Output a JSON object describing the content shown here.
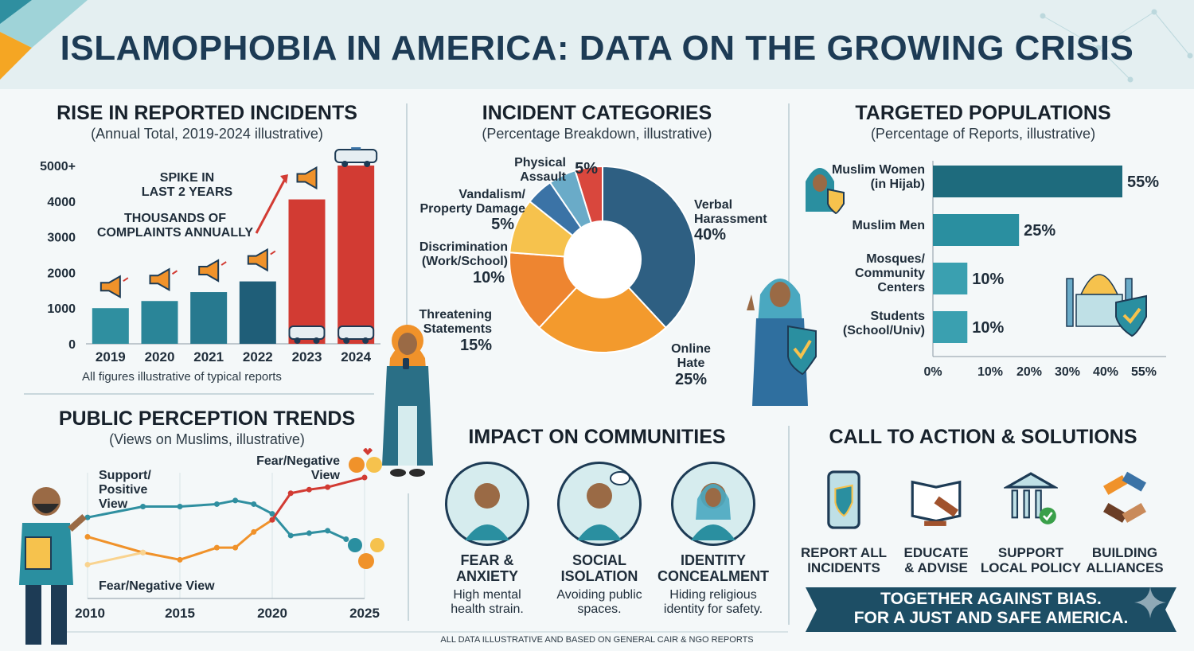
{
  "title": "ISLAMOPHOBIA IN AMERICA: DATA ON THE GROWING CRISIS",
  "colors": {
    "navy": "#1d3b55",
    "teal": "#2f8fa0",
    "red": "#d23b33",
    "orange": "#f0922a",
    "yellow": "#f6c24d",
    "blue": "#3b73a6",
    "lightblue": "#6aabc8"
  },
  "incidents": {
    "title": "RISE IN REPORTED INCIDENTS",
    "subtitle": "(Annual Total, 2019-2024 illustrative)",
    "annotation_spike": "SPIKE IN\nLAST 2 YEARS",
    "annotation_thousands": "THOUSANDS OF\nCOMPLAINTS ANNUALLY",
    "note": "All figures illustrative of typical reports"
  },
  "categories": {
    "title": "INCIDENT CATEGORIES",
    "subtitle": "(Percentage Breakdown, illustrative)"
  },
  "populations": {
    "title": "TARGETED POPULATIONS",
    "subtitle": "(Percentage of Reports, illustrative)"
  },
  "perception": {
    "title": "PUBLIC PERCEPTION TRENDS",
    "subtitle": "(Views on Muslims, illustrative)",
    "label_support": "Support/\nPositive\nView",
    "label_fear_top": "Fear/Negative\nView",
    "label_fear_bottom": "Fear/Negative View"
  },
  "impact": {
    "title": "IMPACT ON COMMUNITIES",
    "items": [
      {
        "title": "FEAR &\nANXIETY",
        "desc": "High mental\nhealth strain.",
        "icon": "anxious-person-icon"
      },
      {
        "title": "SOCIAL\nISOLATION",
        "desc": "Avoiding public\nspaces.",
        "icon": "isolated-person-icon"
      },
      {
        "title": "IDENTITY\nCONCEALMENT",
        "desc": "Hiding religious\nidentity for safety.",
        "icon": "hijab-woman-icon"
      }
    ]
  },
  "action": {
    "title": "CALL TO ACTION & SOLUTIONS",
    "items": [
      {
        "label": "REPORT ALL\nINCIDENTS",
        "icon": "phone-shield-icon"
      },
      {
        "label": "EDUCATE\n& ADVISE",
        "icon": "book-gavel-icon"
      },
      {
        "label": "SUPPORT\nLOCAL POLICY",
        "icon": "government-building-icon"
      },
      {
        "label": "BUILDING\nALLIANCES",
        "icon": "joined-hands-icon"
      }
    ],
    "banner": "TOGETHER AGAINST BIAS.\nFOR A JUST AND SAFE AMERICA."
  },
  "footer": "ALL DATA ILLUSTRATIVE AND BASED ON GENERAL CAIR & NGO REPORTS",
  "chart_data": [
    {
      "type": "bar",
      "title": "RISE IN REPORTED INCIDENTS",
      "categories": [
        "2019",
        "2020",
        "2021",
        "2022",
        "2023",
        "2024"
      ],
      "values": [
        1000,
        1200,
        1450,
        1750,
        4050,
        5000
      ],
      "y_ticks": [
        "0",
        "1000",
        "2000",
        "3000",
        "4000",
        "5000+"
      ],
      "ylim": [
        0,
        5000
      ],
      "bar_colors": [
        "#2f8fa0",
        "#2a8598",
        "#27798f",
        "#1f5e78",
        "#d23b33",
        "#d23b33"
      ]
    },
    {
      "type": "pie",
      "title": "INCIDENT CATEGORIES",
      "slices": [
        {
          "label": "Verbal\nHarassment",
          "value": 40,
          "pct": "40%",
          "color": "#2e5f82"
        },
        {
          "label": "Online\nHate",
          "value": 25,
          "pct": "25%",
          "color": "#f39a2d"
        },
        {
          "label": "Threatening\nStatements",
          "value": 15,
          "pct": "15%",
          "color": "#ee8530"
        },
        {
          "label": "Discrimination\n(Work/School)",
          "value": 10,
          "pct": "10%",
          "color": "#f6c24d"
        },
        {
          "label": "Vandalism/\nProperty Damage",
          "value": 5,
          "pct": "5%",
          "color": "#3b73a6"
        },
        {
          "label": "Physical\nAssault",
          "value": 5,
          "pct": "5%",
          "color": "#6aabc8"
        },
        {
          "label": "",
          "value": 5,
          "pct": "",
          "color": "#d9473d"
        }
      ]
    },
    {
      "type": "bar",
      "orientation": "horizontal",
      "title": "TARGETED POPULATIONS",
      "categories": [
        "Muslim Women\n(in Hijab)",
        "Muslim Men",
        "Mosques/\nCommunity\nCenters",
        "Students\n(School/Univ)"
      ],
      "values": [
        55,
        25,
        10,
        10
      ],
      "value_labels": [
        "55%",
        "25%",
        "10%",
        "10%"
      ],
      "x_ticks": [
        "0%",
        "10%",
        "20%",
        "30%",
        "40%",
        "55%"
      ],
      "x_tick_values": [
        0,
        10,
        20,
        30,
        40,
        55
      ],
      "xlim": [
        0,
        55
      ],
      "bar_colors": [
        "#1e6b7d",
        "#2a8fa0",
        "#3aa0b0",
        "#3aa0b0"
      ]
    },
    {
      "type": "line",
      "title": "PUBLIC PERCEPTION TRENDS",
      "x_ticks": [
        "2010",
        "2015",
        "2020",
        "2025"
      ],
      "x_tick_values": [
        2010,
        2015,
        2020,
        2025
      ],
      "xlim": [
        2010,
        2025
      ],
      "ylim": [
        0,
        100
      ],
      "series": [
        {
          "name": "Support/Positive View",
          "color": "#2f8fa0",
          "x": [
            2010,
            2013,
            2015,
            2017,
            2018,
            2019,
            2020,
            2021,
            2022,
            2023,
            2024
          ],
          "y": [
            67,
            76,
            76,
            78,
            81,
            78,
            70,
            52,
            54,
            56,
            49
          ]
        },
        {
          "name": "Fear/Negative View",
          "color": "#f0922a",
          "x": [
            2010,
            2013,
            2015,
            2017,
            2018,
            2019,
            2020
          ],
          "y": [
            51,
            38,
            32,
            42,
            42,
            55,
            65
          ]
        },
        {
          "name": "Fear/Negative View",
          "color": "#d23b33",
          "x": [
            2020,
            2021,
            2022,
            2023,
            2025
          ],
          "y": [
            65,
            87,
            90,
            92,
            100
          ]
        },
        {
          "name": "",
          "color": "#f9d38f",
          "x": [
            2010,
            2013
          ],
          "y": [
            28,
            38
          ]
        }
      ]
    }
  ]
}
